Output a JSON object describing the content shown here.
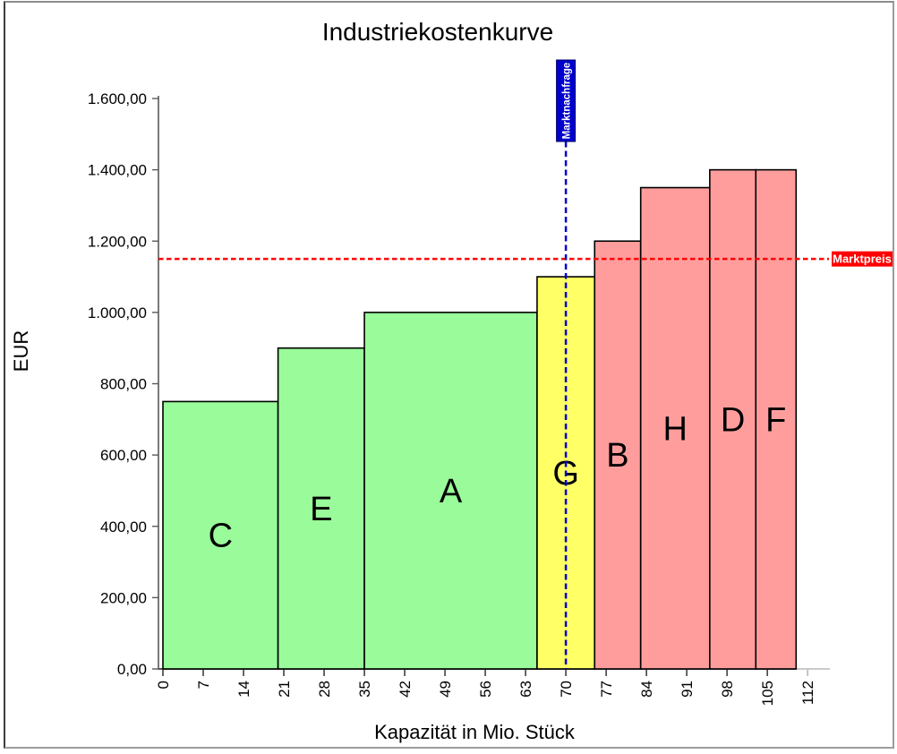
{
  "chart_data": {
    "type": "bar",
    "title": "Industriekostenkurve",
    "xlabel": "Kapazität in Mio. Stück",
    "ylabel": "EUR",
    "xlim": [
      0,
      112
    ],
    "ylim": [
      0,
      1600
    ],
    "grid": false,
    "x_ticks": [
      0,
      7,
      14,
      21,
      28,
      35,
      42,
      49,
      56,
      63,
      70,
      77,
      84,
      91,
      98,
      105,
      112
    ],
    "y_ticks": [
      {
        "value": 0,
        "label": "0,00"
      },
      {
        "value": 200,
        "label": "200,00"
      },
      {
        "value": 400,
        "label": "400,00"
      },
      {
        "value": 600,
        "label": "600,00"
      },
      {
        "value": 800,
        "label": "800,00"
      },
      {
        "value": 1000,
        "label": "1.000,00"
      },
      {
        "value": 1200,
        "label": "1.200,00"
      },
      {
        "value": 1400,
        "label": "1.400,00"
      },
      {
        "value": 1600,
        "label": "1.600,00"
      }
    ],
    "segments": [
      {
        "label": "C",
        "from": 0,
        "to": 20,
        "cost": 750,
        "color": "green"
      },
      {
        "label": "E",
        "from": 20,
        "to": 35,
        "cost": 900,
        "color": "green"
      },
      {
        "label": "A",
        "from": 35,
        "to": 65,
        "cost": 1000,
        "color": "green"
      },
      {
        "label": "G",
        "from": 65,
        "to": 75,
        "cost": 1100,
        "color": "yellow"
      },
      {
        "label": "B",
        "from": 75,
        "to": 83,
        "cost": 1200,
        "color": "red"
      },
      {
        "label": "H",
        "from": 83,
        "to": 95,
        "cost": 1350,
        "color": "red"
      },
      {
        "label": "D",
        "from": 95,
        "to": 103,
        "cost": 1400,
        "color": "red"
      },
      {
        "label": "F",
        "from": 103,
        "to": 110,
        "cost": 1400,
        "color": "red"
      }
    ],
    "annotations": {
      "market_demand": {
        "label": "Marktnachfrage",
        "x": 70
      },
      "market_price": {
        "label": "Marktpreis",
        "y": 1150
      }
    },
    "colors": {
      "green": "#99FB99",
      "yellow": "#FFFF66",
      "red": "#FF9D9D",
      "demand": "#0000CC",
      "price": "#FF0000",
      "bar_border": "#000000"
    }
  }
}
